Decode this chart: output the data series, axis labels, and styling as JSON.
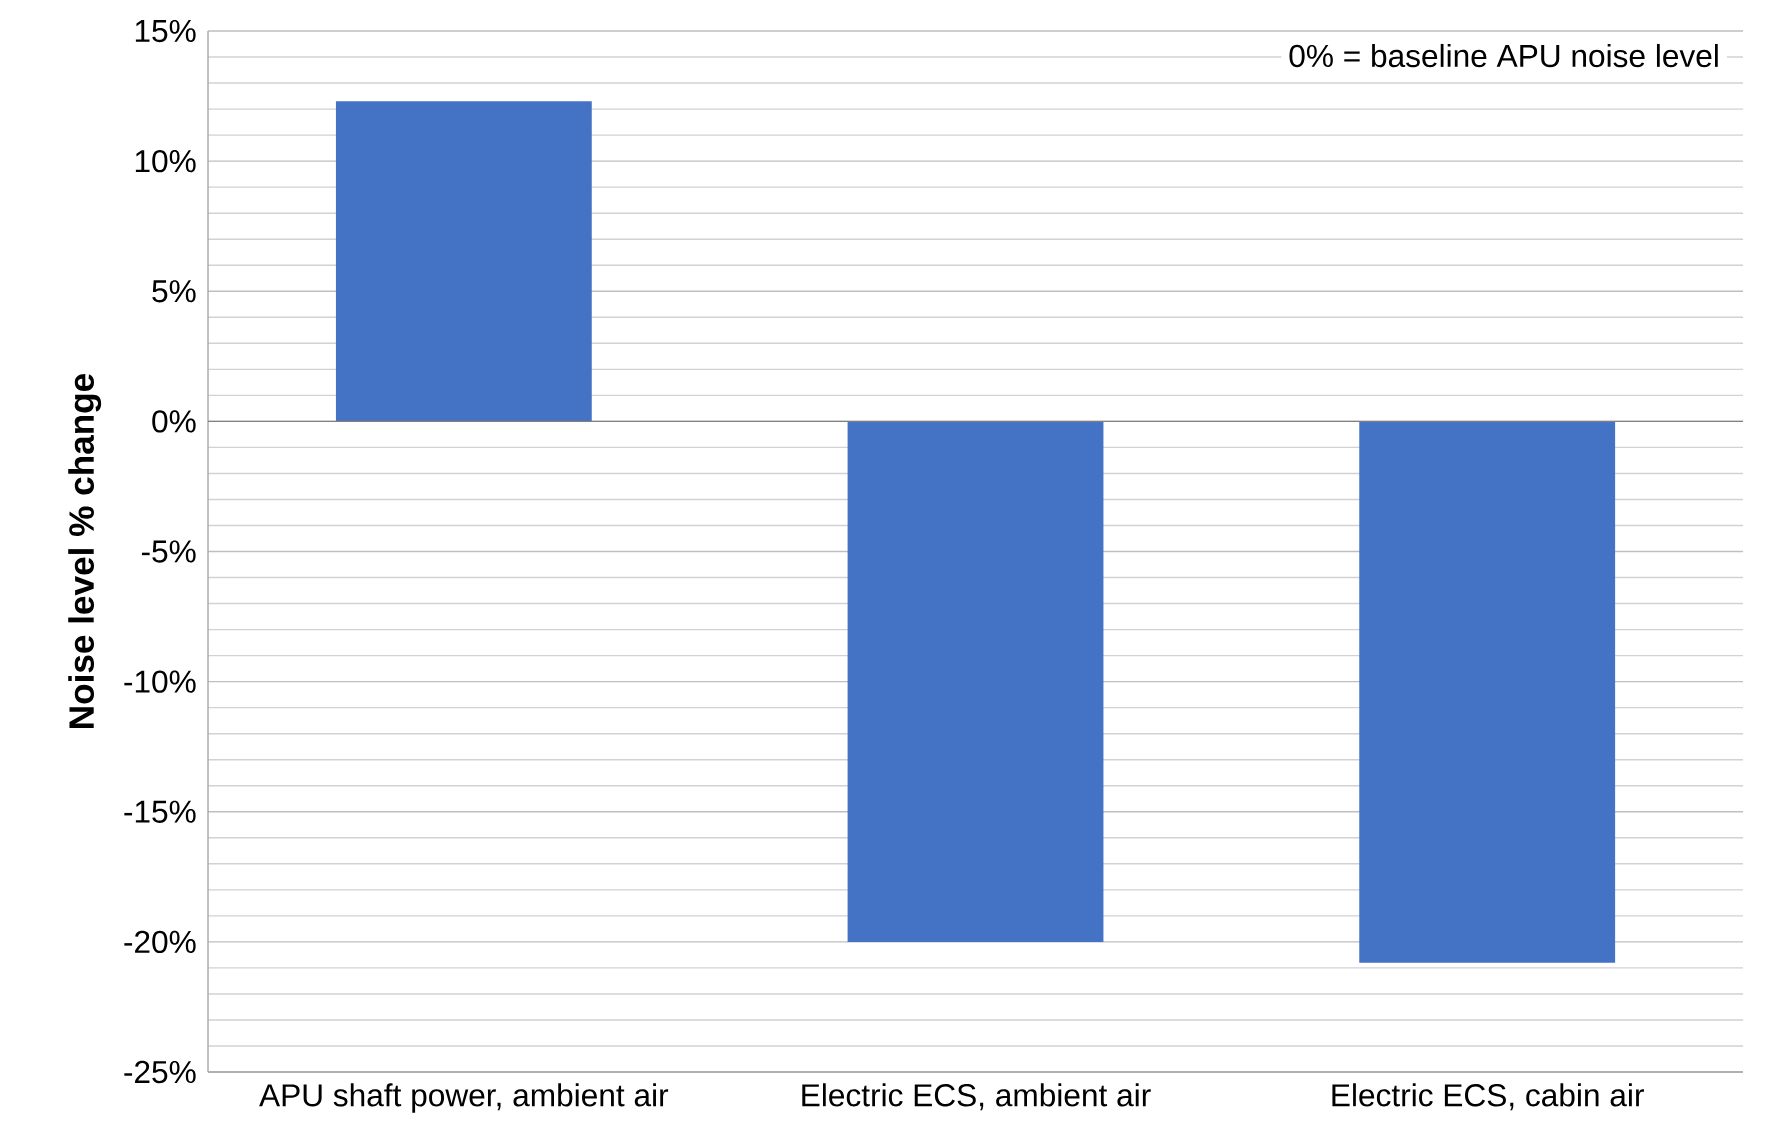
{
  "chart_data": {
    "type": "bar",
    "ylabel": "Noise level % change",
    "categories": [
      "APU shaft power, ambient air",
      "Electric ECS, ambient air",
      "Electric ECS, cabin air"
    ],
    "values": [
      12.3,
      -20.0,
      -20.8
    ],
    "color": "#4472c4",
    "ylim": [
      -25,
      15
    ],
    "yticks": [
      {
        "value": -25,
        "label": "-25%"
      },
      {
        "value": -20,
        "label": "-20%"
      },
      {
        "value": -15,
        "label": "-15%"
      },
      {
        "value": -10,
        "label": "-10%"
      },
      {
        "value": -5,
        "label": "-5%"
      },
      {
        "value": 0,
        "label": "0%"
      },
      {
        "value": 5,
        "label": "5%"
      },
      {
        "value": 10,
        "label": "10%"
      },
      {
        "value": 15,
        "label": "15%"
      }
    ],
    "grid": true,
    "annotations": [
      "0% = baseline APU noise level"
    ]
  }
}
